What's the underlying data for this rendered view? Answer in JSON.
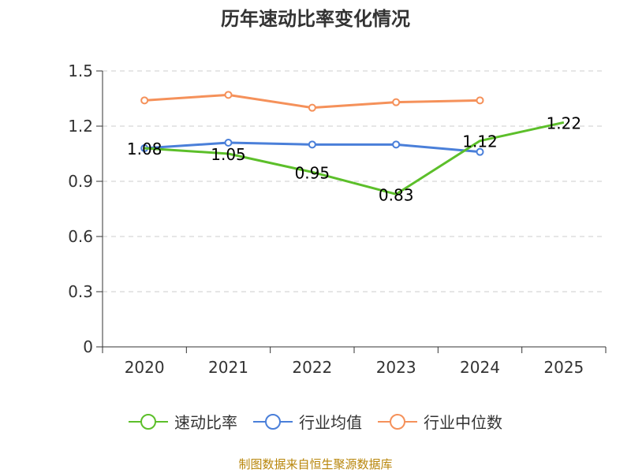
{
  "title": "历年速动比率变化情况",
  "source": "制图数据来自恒生聚源数据库",
  "colors": {
    "speed_ratio": "#5cbf2a",
    "industry_avg": "#4a7fd9",
    "industry_median": "#f5915a",
    "axis": "#333333",
    "grid": "#cccccc"
  },
  "chart_data": {
    "type": "line",
    "categories": [
      "2020",
      "2021",
      "2022",
      "2023",
      "2024",
      "2025"
    ],
    "ylim": [
      0,
      1.5
    ],
    "yticks": [
      "0",
      "0.3",
      "0.6",
      "0.9",
      "1.2",
      "1.5"
    ],
    "series": [
      {
        "name": "速动比率",
        "key": "speed_ratio",
        "values": [
          1.08,
          1.05,
          0.95,
          0.83,
          1.12,
          1.22
        ],
        "labels": [
          "1.08",
          "1.05",
          "0.95",
          "0.83",
          "1.12",
          "1.22"
        ],
        "markers": false
      },
      {
        "name": "行业均值",
        "key": "industry_avg",
        "values": [
          1.08,
          1.11,
          1.1,
          1.1,
          1.06,
          null
        ],
        "markers": true
      },
      {
        "name": "行业中位数",
        "key": "industry_median",
        "values": [
          1.34,
          1.37,
          1.3,
          1.33,
          1.34,
          null
        ],
        "markers": true
      }
    ]
  }
}
